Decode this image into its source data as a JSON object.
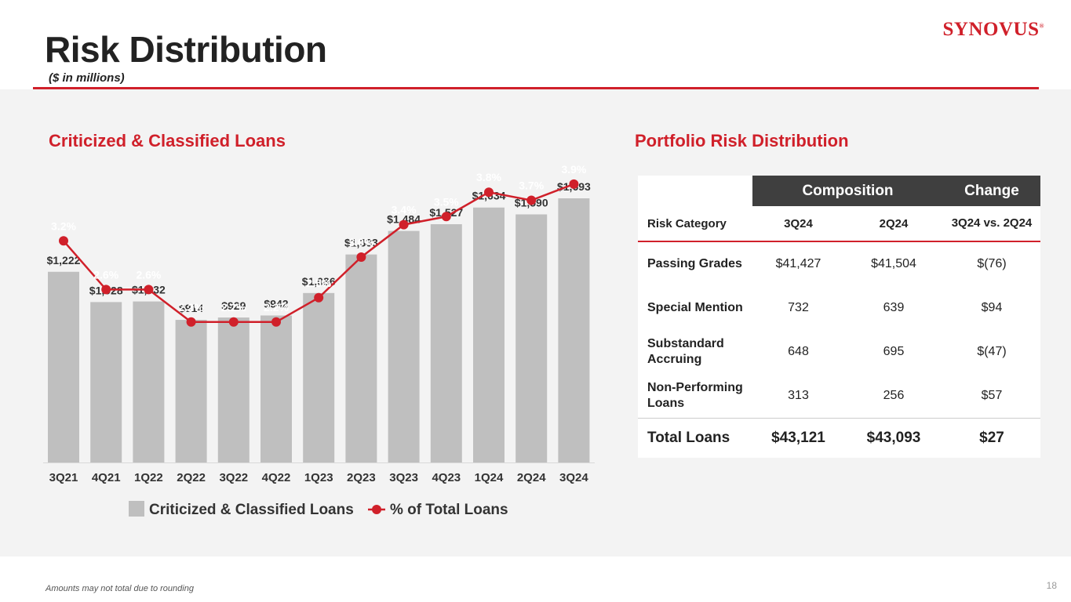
{
  "header": {
    "title": "Risk Distribution",
    "subtitle": "($ in millions)",
    "logo": "SYNOVUS",
    "logo_mark": "®"
  },
  "left_section_title": "Criticized & Classified Loans",
  "right_section_title": "Portfolio Risk Distribution",
  "chart_data": {
    "type": "bar",
    "categories": [
      "3Q21",
      "4Q21",
      "1Q22",
      "2Q22",
      "3Q22",
      "4Q22",
      "1Q23",
      "2Q23",
      "3Q23",
      "4Q23",
      "1Q24",
      "2Q24",
      "3Q24"
    ],
    "series": [
      {
        "name": "Criticized & Classified Loans",
        "type": "bar",
        "color": "#bfbfbf",
        "values": [
          1222,
          1028,
          1032,
          914,
          929,
          942,
          1086,
          1333,
          1484,
          1527,
          1634,
          1590,
          1693
        ],
        "labels": [
          "$1,222",
          "$1,028",
          "$1,032",
          "$914",
          "$929",
          "$942",
          "$1,086",
          "$1,333",
          "$1,484",
          "$1,527",
          "$1,634",
          "$1,590",
          "$1,693"
        ]
      },
      {
        "name": "% of Total Loans",
        "type": "line",
        "color": "#d0202a",
        "values": [
          3.2,
          2.6,
          2.6,
          2.2,
          2.2,
          2.2,
          2.5,
          3.0,
          3.4,
          3.5,
          3.8,
          3.7,
          3.9
        ],
        "labels": [
          "3.2%",
          "2.6%",
          "2.6%",
          "2.2%",
          "2.2%",
          "2.2%",
          "2.5%",
          "3.0%",
          "3.4%",
          "3.5%",
          "3.8%",
          "3.7%",
          "3.9%"
        ]
      }
    ],
    "legend": "bottom",
    "grid": false
  },
  "table": {
    "group_headers": [
      "Composition",
      "Change"
    ],
    "columns": [
      "Risk Category",
      "3Q24",
      "2Q24",
      "3Q24 vs. 2Q24"
    ],
    "rows": [
      [
        "Passing Grades",
        "$41,427",
        "$41,504",
        "$(76)"
      ],
      [
        "Special Mention",
        "732",
        "639",
        "$94"
      ],
      [
        "Substandard Accruing",
        "648",
        "695",
        "$(47)"
      ],
      [
        "Non-Performing Loans",
        "313",
        "256",
        "$57"
      ]
    ],
    "total": [
      "Total Loans",
      "$43,121",
      "$43,093",
      "$27"
    ]
  },
  "footer": "Amounts may not total due to rounding",
  "page_number": "18"
}
